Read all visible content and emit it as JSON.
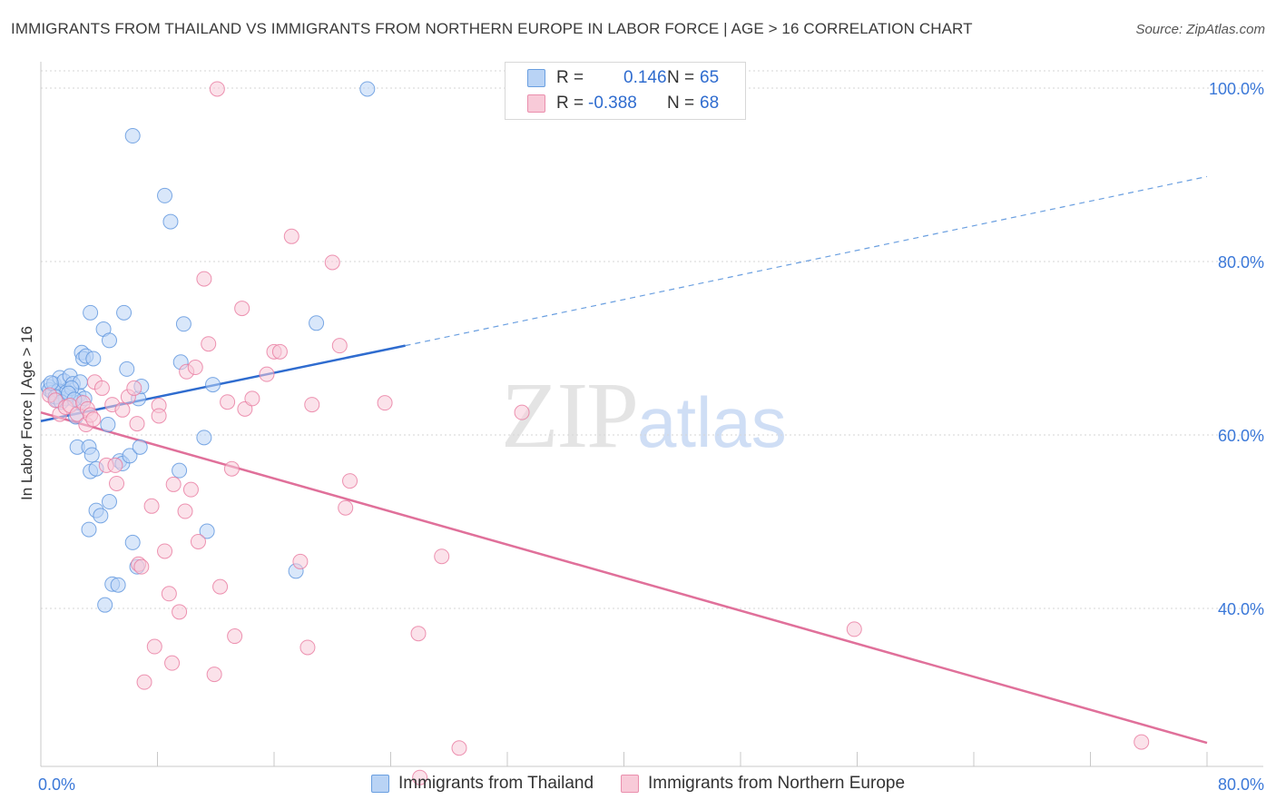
{
  "header": {
    "title": "IMMIGRANTS FROM THAILAND VS IMMIGRANTS FROM NORTHERN EUROPE IN LABOR FORCE | AGE > 16 CORRELATION CHART",
    "source": "Source: ZipAtlas.com"
  },
  "watermark": {
    "zip": "ZIP",
    "atlas": "atlas"
  },
  "stats_legend": {
    "r_label": "R =",
    "n_label": "N =",
    "rows": [
      {
        "series": "Immigrants from Thailand",
        "r": "0.146",
        "n": "65",
        "color": "#5b93dd"
      },
      {
        "series": "Immigrants from Northern Europe",
        "r": "-0.388",
        "n": "68",
        "color": "#e8799f"
      }
    ]
  },
  "chart_data": {
    "type": "scatter",
    "title": "IMMIGRANTS FROM THAILAND VS IMMIGRANTS FROM NORTHERN EUROPE IN LABOR FORCE | AGE > 16 CORRELATION CHART",
    "xlabel": "",
    "ylabel": "In Labor Force | Age > 16",
    "xlim": [
      0,
      80
    ],
    "ylim": [
      20,
      102
    ],
    "x_tick_labels": [
      "0.0%",
      "80.0%"
    ],
    "y_ticks": [
      {
        "value": 40,
        "label": "40.0%"
      },
      {
        "value": 60,
        "label": "60.0%"
      },
      {
        "value": 80,
        "label": "80.0%"
      },
      {
        "value": 100,
        "label": "100.0%"
      }
    ],
    "grid": true,
    "legend_position": "bottom",
    "colors": {
      "blue": "#5b93dd",
      "blue_fill": "#b9d3f5",
      "pink": "#e8799f",
      "pink_fill": "#f8cad8"
    },
    "series": [
      {
        "name": "Immigrants from Thailand",
        "color": "#5b93dd",
        "fill": "#b9d3f5",
        "trend": {
          "x0": 0,
          "y0": 61.6,
          "x1": 25,
          "y1": 70.3,
          "dash_to_x": 80,
          "dash_to_y": 89.8
        },
        "points": [
          [
            0.5,
            65.6
          ],
          [
            0.6,
            65.2
          ],
          [
            0.8,
            64.9
          ],
          [
            0.9,
            65.9
          ],
          [
            1.1,
            64.0
          ],
          [
            1.2,
            65.1
          ],
          [
            1.3,
            66.6
          ],
          [
            1.6,
            66.2
          ],
          [
            1.7,
            64.2
          ],
          [
            1.8,
            65.0
          ],
          [
            2.0,
            66.8
          ],
          [
            2.2,
            65.9
          ],
          [
            2.4,
            62.1
          ],
          [
            2.6,
            64.6
          ],
          [
            2.7,
            66.1
          ],
          [
            2.7,
            63.8
          ],
          [
            2.5,
            58.6
          ],
          [
            2.8,
            69.5
          ],
          [
            2.9,
            68.8
          ],
          [
            3.1,
            69.1
          ],
          [
            3.3,
            58.6
          ],
          [
            3.4,
            55.8
          ],
          [
            3.3,
            49.1
          ],
          [
            3.4,
            74.1
          ],
          [
            3.5,
            57.7
          ],
          [
            3.6,
            68.8
          ],
          [
            3.8,
            56.1
          ],
          [
            3.8,
            51.3
          ],
          [
            4.1,
            50.7
          ],
          [
            4.3,
            72.2
          ],
          [
            4.4,
            40.4
          ],
          [
            4.6,
            61.2
          ],
          [
            4.7,
            70.9
          ],
          [
            4.7,
            52.3
          ],
          [
            4.9,
            42.8
          ],
          [
            5.3,
            42.7
          ],
          [
            5.4,
            57.0
          ],
          [
            5.6,
            56.7
          ],
          [
            5.7,
            74.1
          ],
          [
            5.9,
            67.6
          ],
          [
            6.1,
            57.6
          ],
          [
            6.3,
            47.6
          ],
          [
            6.3,
            94.5
          ],
          [
            6.6,
            44.8
          ],
          [
            6.7,
            64.2
          ],
          [
            6.8,
            58.6
          ],
          [
            6.9,
            65.6
          ],
          [
            8.5,
            87.6
          ],
          [
            8.9,
            84.6
          ],
          [
            9.5,
            55.9
          ],
          [
            9.6,
            68.4
          ],
          [
            9.8,
            72.8
          ],
          [
            11.2,
            59.7
          ],
          [
            11.4,
            48.9
          ],
          [
            11.8,
            65.8
          ],
          [
            17.5,
            44.3
          ],
          [
            18.9,
            72.9
          ],
          [
            22.4,
            99.9
          ],
          [
            1.0,
            64.4
          ],
          [
            1.4,
            63.8
          ],
          [
            2.1,
            65.4
          ],
          [
            3.0,
            64.2
          ],
          [
            1.9,
            64.8
          ],
          [
            0.7,
            66.0
          ],
          [
            2.3,
            64.1
          ]
        ]
      },
      {
        "name": "Immigrants from Northern Europe",
        "color": "#e8799f",
        "fill": "#f8cad8",
        "trend": {
          "x0": 0,
          "y0": 62.6,
          "x1": 80,
          "y1": 24.5
        },
        "points": [
          [
            0.6,
            64.6
          ],
          [
            1.0,
            64.0
          ],
          [
            1.3,
            62.4
          ],
          [
            1.7,
            63.2
          ],
          [
            2.0,
            63.4
          ],
          [
            2.5,
            62.4
          ],
          [
            2.9,
            63.7
          ],
          [
            3.1,
            61.2
          ],
          [
            3.2,
            63.0
          ],
          [
            3.4,
            62.3
          ],
          [
            3.7,
            66.1
          ],
          [
            4.2,
            65.4
          ],
          [
            4.5,
            56.5
          ],
          [
            4.9,
            63.5
          ],
          [
            5.1,
            56.5
          ],
          [
            5.2,
            54.4
          ],
          [
            5.6,
            62.9
          ],
          [
            6.0,
            64.4
          ],
          [
            6.4,
            65.4
          ],
          [
            6.6,
            61.3
          ],
          [
            6.7,
            45.1
          ],
          [
            6.9,
            44.8
          ],
          [
            7.1,
            31.5
          ],
          [
            7.6,
            51.8
          ],
          [
            7.8,
            35.6
          ],
          [
            8.1,
            63.4
          ],
          [
            8.1,
            62.2
          ],
          [
            8.5,
            46.6
          ],
          [
            8.8,
            41.7
          ],
          [
            9.0,
            33.7
          ],
          [
            9.1,
            54.3
          ],
          [
            9.5,
            39.6
          ],
          [
            9.9,
            51.2
          ],
          [
            10.0,
            67.3
          ],
          [
            10.3,
            53.7
          ],
          [
            10.6,
            67.8
          ],
          [
            10.8,
            47.7
          ],
          [
            11.2,
            78.0
          ],
          [
            11.5,
            70.5
          ],
          [
            11.9,
            32.4
          ],
          [
            12.3,
            42.5
          ],
          [
            12.8,
            63.8
          ],
          [
            13.1,
            56.1
          ],
          [
            13.3,
            36.8
          ],
          [
            13.8,
            74.6
          ],
          [
            14.0,
            63.0
          ],
          [
            14.5,
            64.2
          ],
          [
            15.5,
            67.0
          ],
          [
            16.0,
            69.6
          ],
          [
            16.4,
            69.6
          ],
          [
            17.2,
            82.9
          ],
          [
            17.8,
            45.4
          ],
          [
            18.3,
            35.5
          ],
          [
            18.6,
            63.5
          ],
          [
            20.0,
            79.9
          ],
          [
            20.5,
            70.3
          ],
          [
            20.9,
            51.6
          ],
          [
            21.2,
            54.7
          ],
          [
            23.6,
            63.7
          ],
          [
            25.9,
            37.1
          ],
          [
            26.0,
            20.5
          ],
          [
            27.5,
            46.0
          ],
          [
            28.7,
            23.9
          ],
          [
            33.0,
            62.6
          ],
          [
            55.8,
            37.6
          ],
          [
            75.5,
            24.6
          ],
          [
            12.1,
            99.9
          ],
          [
            3.6,
            61.8
          ]
        ]
      }
    ]
  },
  "bottom_legend": {
    "items": [
      {
        "label": "Immigrants from Thailand"
      },
      {
        "label": "Immigrants from Northern Europe"
      }
    ]
  }
}
